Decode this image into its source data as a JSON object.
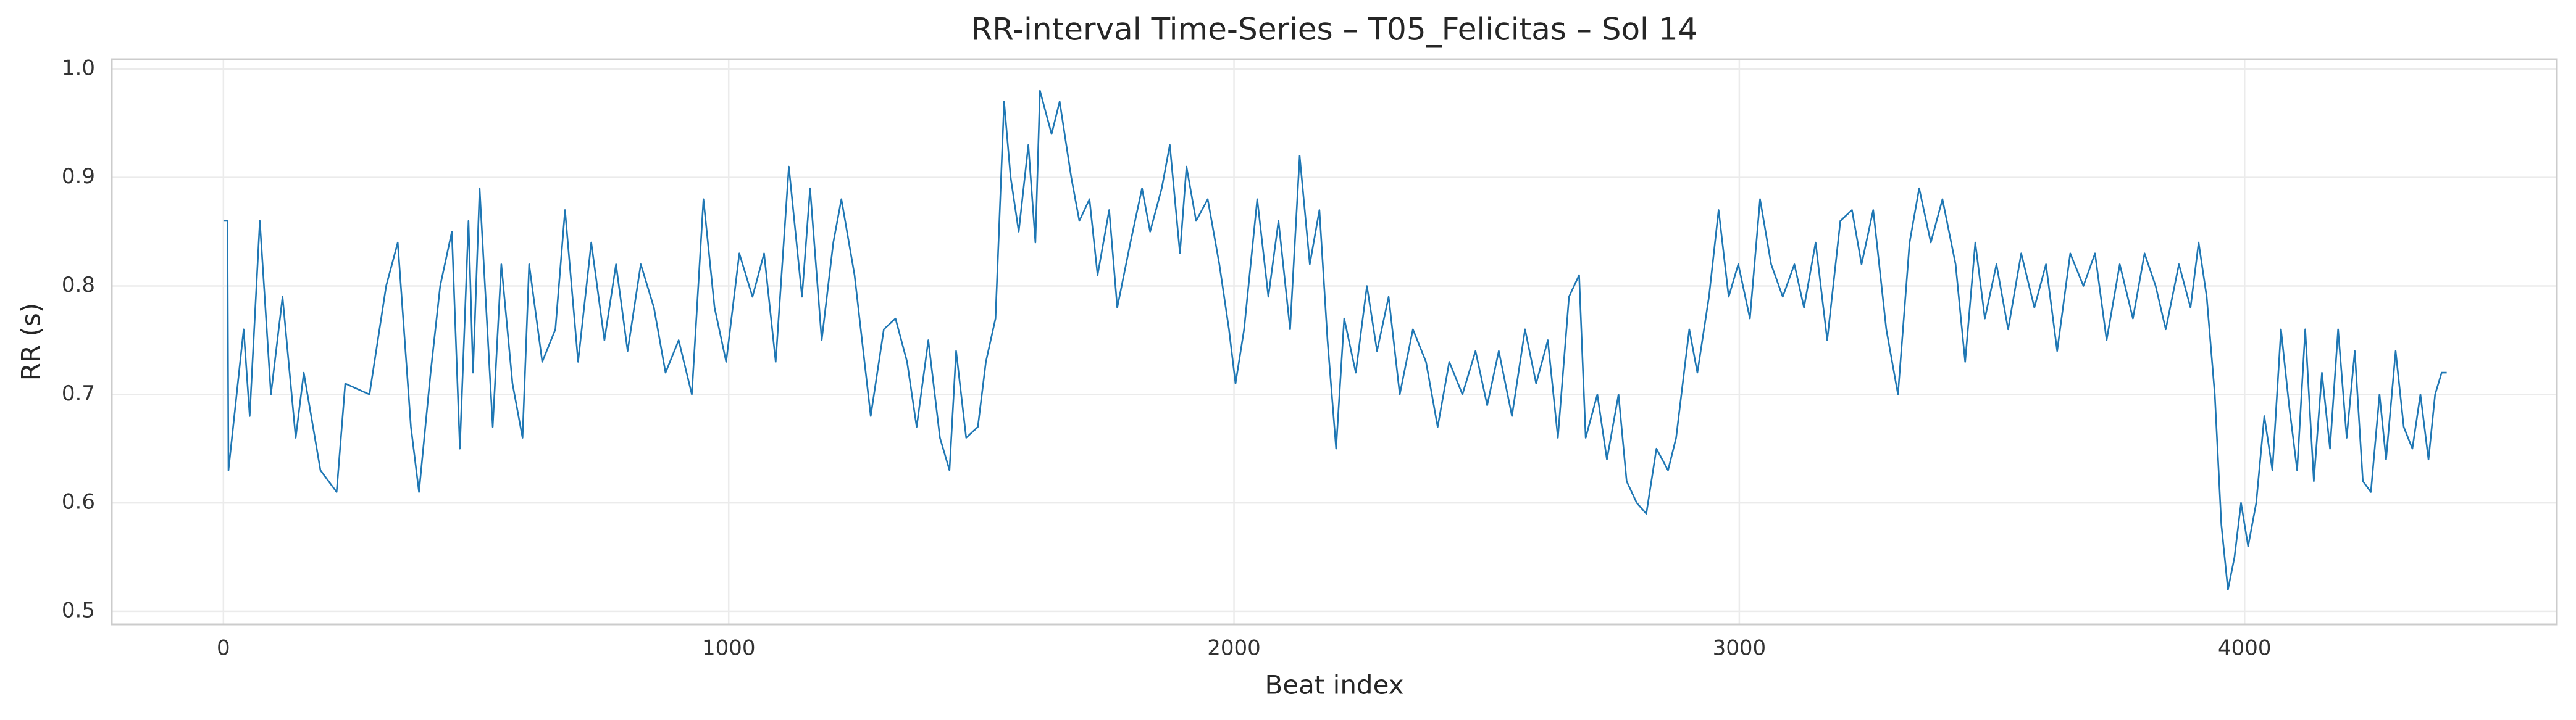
{
  "chart_data": {
    "type": "line",
    "title": "RR-interval Time-Series – T05_Felicitas – Sol 14",
    "xlabel": "Beat index",
    "ylabel": "RR (s)",
    "color": "#1f77b4",
    "grid": true,
    "xlim": [
      -221,
      4618
    ],
    "ylim": [
      0.488,
      1.009
    ],
    "xticks": [
      0,
      1000,
      2000,
      3000,
      4000
    ],
    "yticks": [
      0.5,
      0.6,
      0.7,
      0.8,
      0.9,
      {
        "value": 1,
        "label": "1.0"
      }
    ],
    "x": [
      0,
      8,
      10,
      40,
      52,
      72,
      94,
      117,
      143,
      159,
      192,
      224,
      241,
      289,
      322,
      345,
      371,
      387,
      410,
      429,
      452,
      468,
      485,
      494,
      507,
      533,
      550,
      572,
      592,
      605,
      631,
      657,
      676,
      702,
      728,
      754,
      777,
      800,
      826,
      852,
      875,
      901,
      927,
      950,
      972,
      995,
      1021,
      1047,
      1070,
      1093,
      1119,
      1145,
      1161,
      1184,
      1207,
      1223,
      1249,
      1281,
      1307,
      1330,
      1353,
      1372,
      1395,
      1418,
      1437,
      1450,
      1470,
      1493,
      1509,
      1528,
      1545,
      1558,
      1574,
      1593,
      1607,
      1616,
      1639,
      1655,
      1678,
      1694,
      1714,
      1730,
      1753,
      1769,
      1795,
      1818,
      1834,
      1857,
      1873,
      1893,
      1906,
      1925,
      1948,
      1971,
      1990,
      2003,
      2020,
      2046,
      2068,
      2088,
      2111,
      2130,
      2150,
      2169,
      2185,
      2202,
      2218,
      2241,
      2263,
      2283,
      2306,
      2328,
      2354,
      2380,
      2403,
      2426,
      2452,
      2478,
      2501,
      2524,
      2550,
      2576,
      2598,
      2621,
      2641,
      2663,
      2683,
      2696,
      2719,
      2738,
      2761,
      2777,
      2797,
      2816,
      2836,
      2859,
      2875,
      2901,
      2917,
      2940,
      2959,
      2979,
      2998,
      3021,
      3041,
      3063,
      3086,
      3109,
      3128,
      3151,
      3174,
      3200,
      3223,
      3242,
      3265,
      3291,
      3314,
      3337,
      3356,
      3379,
      3402,
      3428,
      3447,
      3467,
      3486,
      3509,
      3532,
      3558,
      3584,
      3607,
      3629,
      3655,
      3681,
      3704,
      3727,
      3753,
      3779,
      3802,
      3824,
      3844,
      3870,
      3893,
      3909,
      3925,
      3941,
      3954,
      3967,
      3980,
      3993,
      4007,
      4023,
      4039,
      4055,
      4072,
      4088,
      4104,
      4120,
      4137,
      4153,
      4169,
      4185,
      4202,
      4218,
      4234,
      4250,
      4267,
      4280,
      4299,
      4315,
      4332,
      4348,
      4364,
      4377,
      4390,
      4400
    ],
    "values": [
      0.86,
      0.86,
      0.63,
      0.76,
      0.68,
      0.86,
      0.7,
      0.79,
      0.66,
      0.72,
      0.63,
      0.61,
      0.71,
      0.7,
      0.8,
      0.84,
      0.67,
      0.61,
      0.72,
      0.8,
      0.85,
      0.65,
      0.86,
      0.72,
      0.89,
      0.67,
      0.82,
      0.71,
      0.66,
      0.82,
      0.73,
      0.76,
      0.87,
      0.73,
      0.84,
      0.75,
      0.82,
      0.74,
      0.82,
      0.78,
      0.72,
      0.75,
      0.7,
      0.88,
      0.78,
      0.73,
      0.83,
      0.79,
      0.83,
      0.73,
      0.91,
      0.79,
      0.89,
      0.75,
      0.84,
      0.88,
      0.81,
      0.68,
      0.76,
      0.77,
      0.73,
      0.67,
      0.75,
      0.66,
      0.63,
      0.74,
      0.66,
      0.67,
      0.73,
      0.77,
      0.97,
      0.9,
      0.85,
      0.93,
      0.84,
      0.98,
      0.94,
      0.97,
      0.9,
      0.86,
      0.88,
      0.81,
      0.87,
      0.78,
      0.84,
      0.89,
      0.85,
      0.89,
      0.93,
      0.83,
      0.91,
      0.86,
      0.88,
      0.82,
      0.76,
      0.71,
      0.76,
      0.88,
      0.79,
      0.86,
      0.76,
      0.92,
      0.82,
      0.87,
      0.75,
      0.65,
      0.77,
      0.72,
      0.8,
      0.74,
      0.79,
      0.7,
      0.76,
      0.73,
      0.67,
      0.73,
      0.7,
      0.74,
      0.69,
      0.74,
      0.68,
      0.76,
      0.71,
      0.75,
      0.66,
      0.79,
      0.81,
      0.66,
      0.7,
      0.64,
      0.7,
      0.62,
      0.6,
      0.59,
      0.65,
      0.63,
      0.66,
      0.76,
      0.72,
      0.79,
      0.87,
      0.79,
      0.82,
      0.77,
      0.88,
      0.82,
      0.79,
      0.82,
      0.78,
      0.84,
      0.75,
      0.86,
      0.87,
      0.82,
      0.87,
      0.76,
      0.7,
      0.84,
      0.89,
      0.84,
      0.88,
      0.82,
      0.73,
      0.84,
      0.77,
      0.82,
      0.76,
      0.83,
      0.78,
      0.82,
      0.74,
      0.83,
      0.8,
      0.83,
      0.75,
      0.82,
      0.77,
      0.83,
      0.8,
      0.76,
      0.82,
      0.78,
      0.84,
      0.79,
      0.7,
      0.58,
      0.52,
      0.55,
      0.6,
      0.56,
      0.6,
      0.68,
      0.63,
      0.76,
      0.69,
      0.63,
      0.76,
      0.62,
      0.72,
      0.65,
      0.76,
      0.66,
      0.74,
      0.62,
      0.61,
      0.7,
      0.64,
      0.74,
      0.67,
      0.65,
      0.7,
      0.64,
      0.7,
      0.72,
      0.72
    ]
  }
}
